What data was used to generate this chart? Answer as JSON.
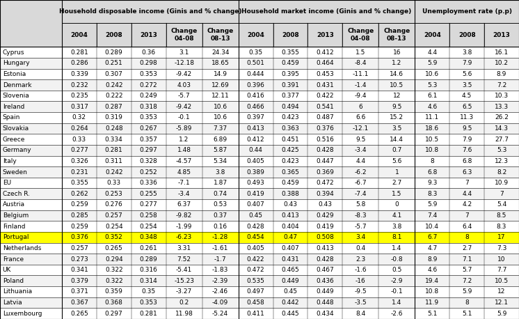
{
  "countries": [
    "Cyprus",
    "Hungary",
    "Estonia",
    "Denmark",
    "Slovenia",
    "Ireland",
    "Spain",
    "Slovakia",
    "Greece",
    "Germany",
    "Italy",
    "Sweden",
    "EU",
    "Czech R.",
    "Austria",
    "Belgium",
    "Finland",
    "Portugal",
    "Netherlands",
    "France",
    "UK",
    "Poland",
    "Lithuania",
    "Latvia",
    "Luxembourg"
  ],
  "hdi_2004": [
    "0.281",
    "0.286",
    "0.339",
    "0.232",
    "0.235",
    "0.317",
    "0.32",
    "0.264",
    "0.33",
    "0.277",
    "0.326",
    "0.231",
    "0.355",
    "0.262",
    "0.259",
    "0.285",
    "0.259",
    "0.376",
    "0.257",
    "0.273",
    "0.341",
    "0.379",
    "0.371",
    "0.367",
    "0.265"
  ],
  "hdi_2008": [
    "0.289",
    "0.251",
    "0.307",
    "0.242",
    "0.222",
    "0.287",
    "0.319",
    "0.248",
    "0.334",
    "0.281",
    "0.311",
    "0.242",
    "0.33",
    "0.253",
    "0.276",
    "0.257",
    "0.254",
    "0.352",
    "0.265",
    "0.294",
    "0.322",
    "0.322",
    "0.359",
    "0.368",
    "0.297"
  ],
  "hdi_2013": [
    "0.36",
    "0.298",
    "0.353",
    "0.272",
    "0.249",
    "0.318",
    "0.353",
    "0.267",
    "0.357",
    "0.297",
    "0.328",
    "0.252",
    "0.336",
    "0.255",
    "0.277",
    "0.258",
    "0.254",
    "0.348",
    "0.261",
    "0.289",
    "0.316",
    "0.314",
    "0.35",
    "0.353",
    "0.281"
  ],
  "hdi_ch0408": [
    "3.1",
    "-12.18",
    "-9.42",
    "4.03",
    "-5.7",
    "-9.42",
    "-0.1",
    "-5.89",
    "1.2",
    "1.48",
    "-4.57",
    "4.85",
    "-7.1",
    "-3.4",
    "6.37",
    "-9.82",
    "-1.99",
    "-6.23",
    "3.31",
    "7.52",
    "-5.41",
    "-15.23",
    "-3.27",
    "0.2",
    "11.98"
  ],
  "hdi_ch0813": [
    "24.34",
    "18.65",
    "14.9",
    "12.69",
    "12.11",
    "10.6",
    "10.6",
    "7.37",
    "6.89",
    "5.87",
    "5.34",
    "3.8",
    "1.87",
    "0.74",
    "0.53",
    "0.37",
    "0.16",
    "-1.28",
    "-1.61",
    "-1.7",
    "-1.83",
    "-2.39",
    "-2.46",
    "-4.09",
    "-5.24"
  ],
  "hmi_2004": [
    "0.35",
    "0.501",
    "0.444",
    "0.396",
    "0.416",
    "0.466",
    "0.397",
    "0.413",
    "0.412",
    "0.44",
    "0.405",
    "0.389",
    "0.493",
    "0.419",
    "0.407",
    "0.45",
    "0.428",
    "0.454",
    "0.405",
    "0.422",
    "0.472",
    "0.535",
    "0.497",
    "0.458",
    "0.411"
  ],
  "hmi_2008": [
    "0.355",
    "0.459",
    "0.395",
    "0.391",
    "0.377",
    "0.494",
    "0.423",
    "0.363",
    "0.451",
    "0.425",
    "0.423",
    "0.365",
    "0.459",
    "0.388",
    "0.43",
    "0.413",
    "0.404",
    "0.47",
    "0.407",
    "0.431",
    "0.465",
    "0.449",
    "0.45",
    "0.442",
    "0.445"
  ],
  "hmi_2013": [
    "0.412",
    "0.464",
    "0.453",
    "0.431",
    "0.422",
    "0.541",
    "0.487",
    "0.376",
    "0.516",
    "0.428",
    "0.447",
    "0.369",
    "0.472",
    "0.394",
    "0.43",
    "0.429",
    "0.419",
    "0.508",
    "0.413",
    "0.428",
    "0.467",
    "0.436",
    "0.449",
    "0.448",
    "0.434"
  ],
  "hmi_ch0408": [
    "1.5",
    "-8.4",
    "-11.1",
    "-1.4",
    "-9.4",
    "6",
    "6.6",
    "-12.1",
    "9.5",
    "-3.4",
    "4.4",
    "-6.2",
    "-6.7",
    "-7.4",
    "5.8",
    "-8.3",
    "-5.7",
    "3.4",
    "0.4",
    "2.3",
    "-1.6",
    "-16",
    "-9.5",
    "-3.5",
    "8.4"
  ],
  "hmi_ch0813": [
    "16",
    "1.2",
    "14.6",
    "10.5",
    "12",
    "9.5",
    "15.2",
    "3.5",
    "14.4",
    "0.7",
    "5.6",
    "1",
    "2.7",
    "1.5",
    "0",
    "4.1",
    "3.8",
    "8.1",
    "1.4",
    "-0.8",
    "0.5",
    "-2.9",
    "-0.1",
    "1.4",
    "-2.6"
  ],
  "unemp_2004": [
    "4.4",
    "5.9",
    "10.6",
    "5.3",
    "6.1",
    "4.6",
    "11.1",
    "18.6",
    "10.5",
    "10.8",
    "8",
    "6.8",
    "9.3",
    "8.3",
    "5.9",
    "7.4",
    "10.4",
    "6.7",
    "4.7",
    "8.9",
    "4.6",
    "19.4",
    "10.8",
    "11.9",
    "5.1"
  ],
  "unemp_2008": [
    "3.8",
    "7.9",
    "5.6",
    "3.5",
    "4.5",
    "6.5",
    "11.3",
    "9.5",
    "7.9",
    "7.6",
    "6.8",
    "6.3",
    "7",
    "4.4",
    "4.2",
    "7",
    "6.4",
    "8",
    "2.7",
    "7.1",
    "5.7",
    "7.2",
    "5.9",
    "8",
    "5.1"
  ],
  "unemp_2013": [
    "16.1",
    "10.2",
    "8.9",
    "7.2",
    "10.3",
    "13.3",
    "26.2",
    "14.3",
    "27.7",
    "5.3",
    "12.3",
    "8.2",
    "10.9",
    "7",
    "5.4",
    "8.5",
    "8.3",
    "17",
    "7.3",
    "10",
    "7.7",
    "10.5",
    "12",
    "12.1",
    "5.9"
  ],
  "header_bg": "#d9d9d9",
  "alt_row_bg": "#f2f2f2",
  "portugal_bg": "#ffff00",
  "font_size": 6.5,
  "header_font_size": 6.5,
  "figsize": [
    7.46,
    4.58
  ],
  "dpi": 100
}
